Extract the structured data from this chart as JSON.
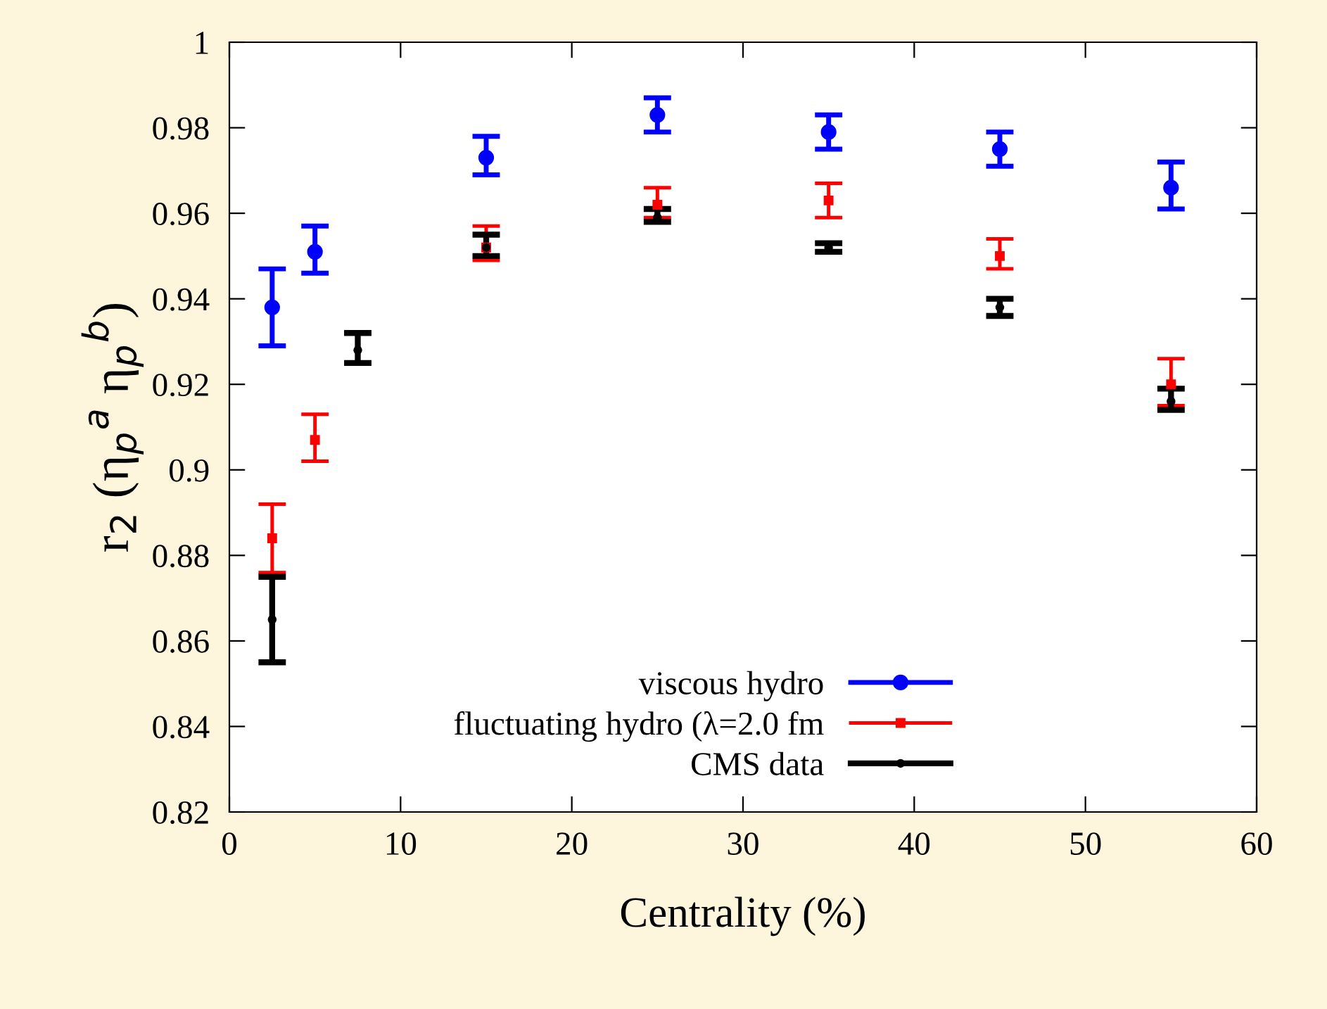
{
  "chart_data": {
    "type": "scatter",
    "xlabel": "Centrality (%)",
    "ylabel": "r$_{2}$ (η$_{p}$$^{a}$ η$_{p}$$^{b}$)",
    "xlim": [
      0,
      60
    ],
    "ylim": [
      0.82,
      1
    ],
    "xticks": [
      0,
      10,
      20,
      30,
      40,
      50,
      60
    ],
    "yticks": [
      0.82,
      0.84,
      0.86,
      0.88,
      0.9,
      0.92,
      0.94,
      0.96,
      0.98,
      1
    ],
    "grid": false,
    "legend": "bottom",
    "series": [
      {
        "name": "viscous hydro",
        "color": "#0000ff",
        "marker": "circle",
        "x": [
          2.5,
          5,
          15,
          25,
          35,
          45,
          55
        ],
        "values": [
          0.938,
          0.951,
          0.973,
          0.983,
          0.979,
          0.975,
          0.966
        ],
        "errors": [
          [
            0.929,
            0.947
          ],
          [
            0.946,
            0.957
          ],
          [
            0.969,
            0.978
          ],
          [
            0.979,
            0.987
          ],
          [
            0.975,
            0.983
          ],
          [
            0.971,
            0.979
          ],
          [
            0.961,
            0.972
          ]
        ]
      },
      {
        "name": "fluctuating hydro (λ=2.0 fm",
        "color": "#ff0000",
        "marker": "square",
        "x": [
          2.5,
          5,
          15,
          25,
          35,
          45,
          55
        ],
        "values": [
          0.884,
          0.907,
          0.952,
          0.962,
          0.963,
          0.95,
          0.92
        ],
        "errors": [
          [
            0.876,
            0.892
          ],
          [
            0.902,
            0.913
          ],
          [
            0.949,
            0.957
          ],
          [
            0.959,
            0.966
          ],
          [
            0.959,
            0.967
          ],
          [
            0.947,
            0.954
          ],
          [
            0.915,
            0.926
          ]
        ]
      },
      {
        "name": "CMS data",
        "color": "#000000",
        "marker": "circle",
        "x": [
          2.5,
          7.5,
          15,
          25,
          35,
          45,
          55
        ],
        "values": [
          0.865,
          0.928,
          0.952,
          0.959,
          0.952,
          0.938,
          0.916
        ],
        "errors": [
          [
            0.855,
            0.875
          ],
          [
            0.925,
            0.932
          ],
          [
            0.95,
            0.955
          ],
          [
            0.958,
            0.961
          ],
          [
            0.951,
            0.953
          ],
          [
            0.936,
            0.94
          ],
          [
            0.914,
            0.919
          ]
        ]
      }
    ]
  }
}
